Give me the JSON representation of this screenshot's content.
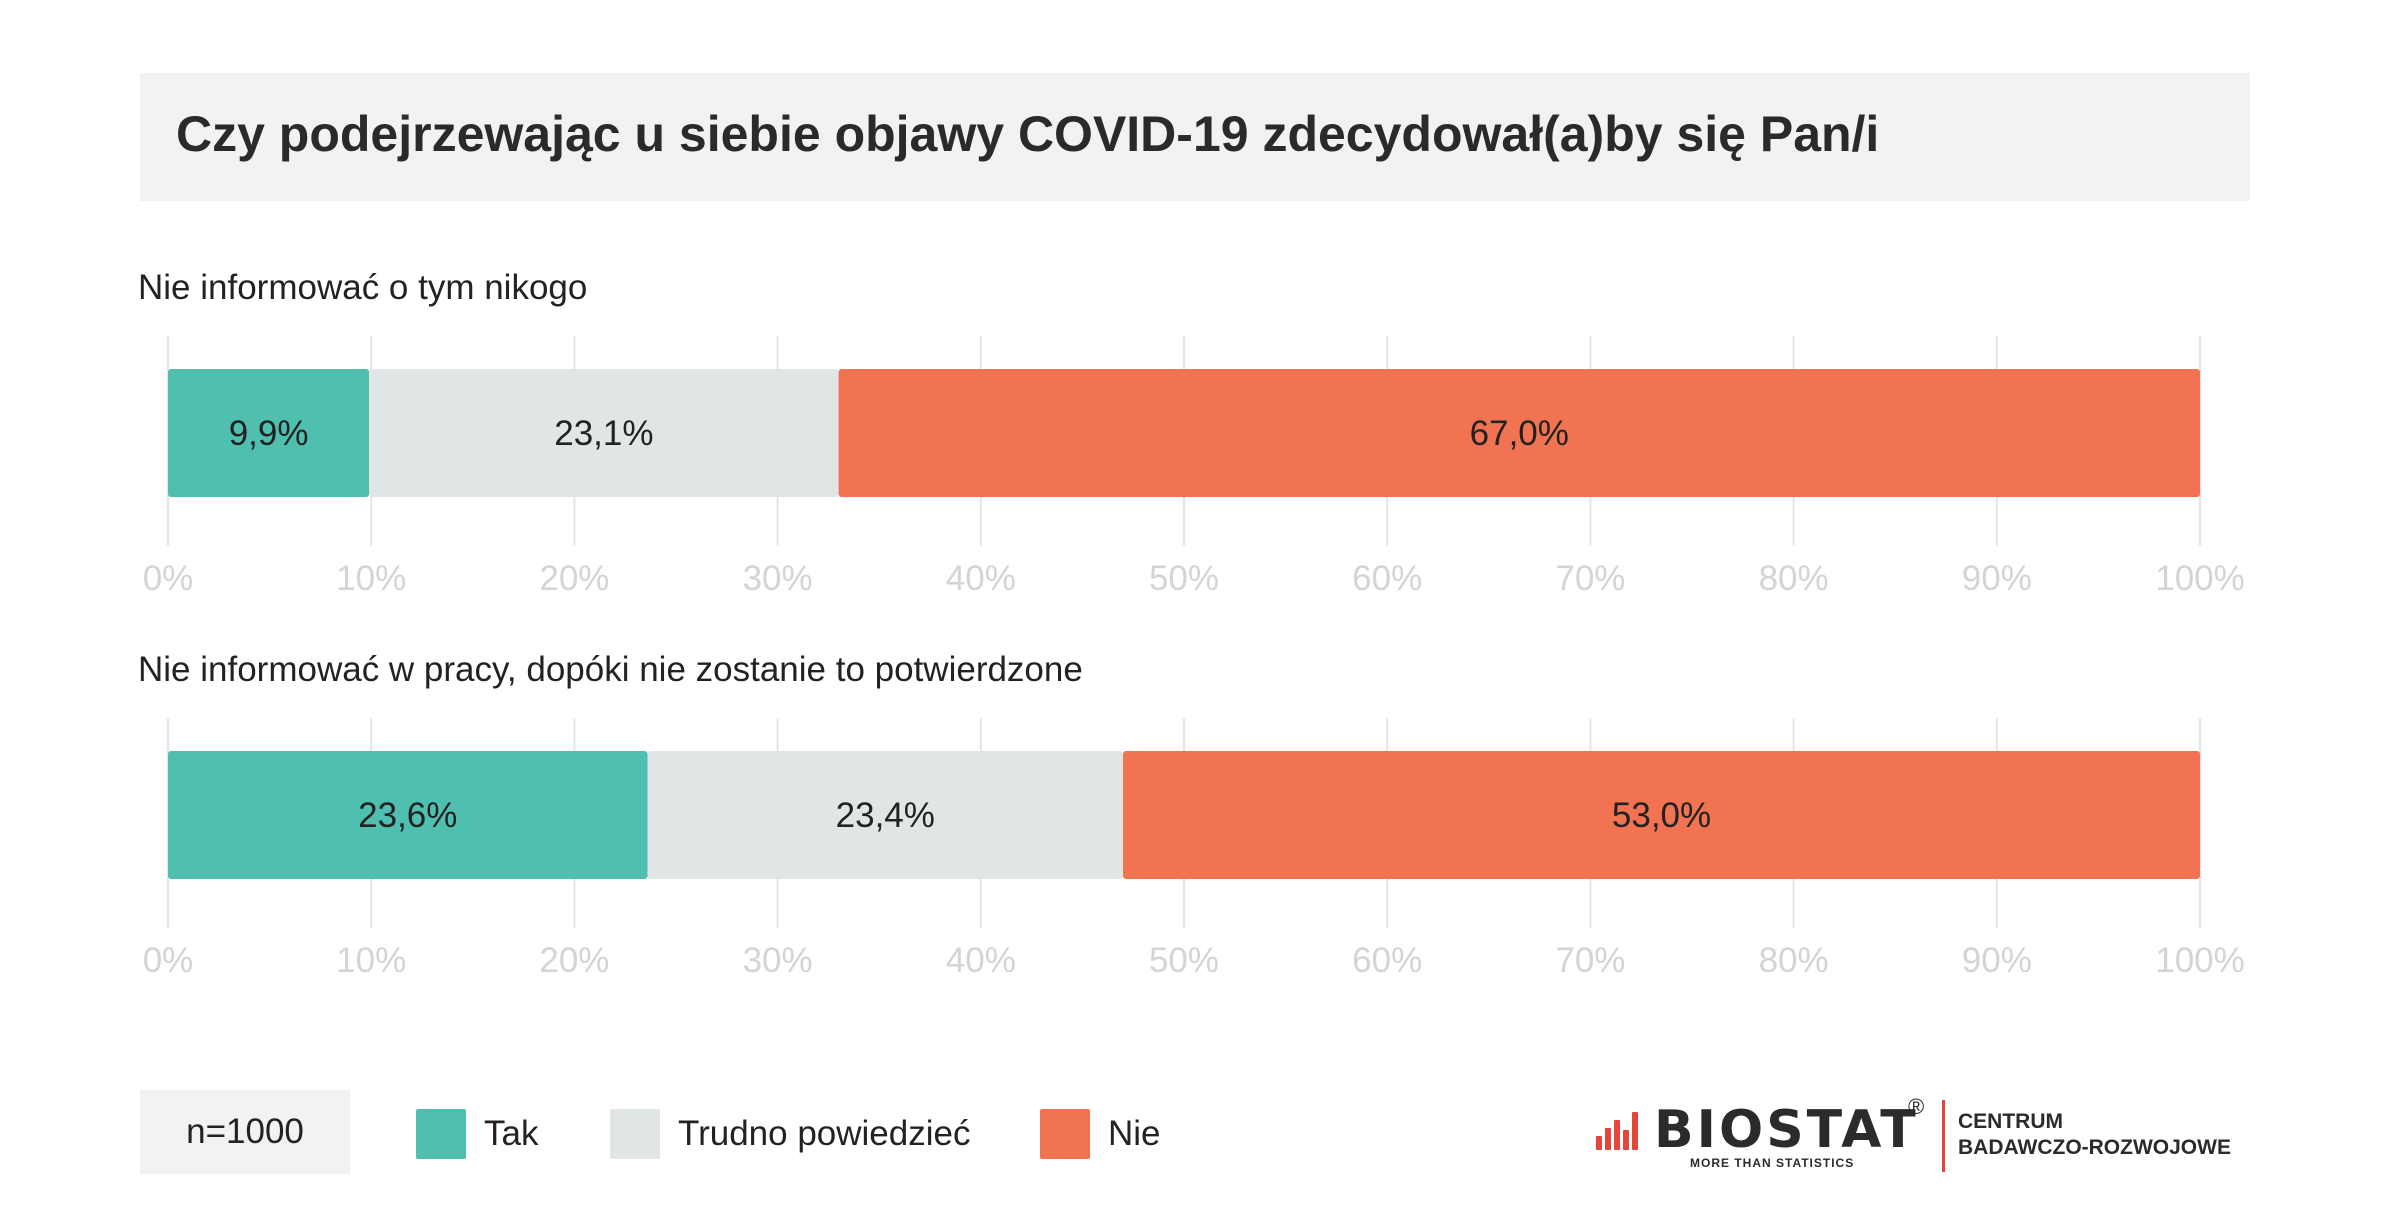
{
  "title": "Czy podejrzewając u siebie objawy COVID-19 zdecydował(a)by się Pan/i",
  "colors": {
    "tak": "#4fc0b0",
    "trudno": "#e0e6e6",
    "nie": "#f17352",
    "grid": "#e4e4e4",
    "tick": "#d4d4d4"
  },
  "chart_data": [
    {
      "type": "bar",
      "orientation": "horizontal-stacked",
      "title": "Nie informować o tym nikogo",
      "xlim": [
        0,
        100
      ],
      "ticks": [
        "0%",
        "10%",
        "20%",
        "30%",
        "40%",
        "50%",
        "60%",
        "70%",
        "80%",
        "90%",
        "100%"
      ],
      "series": [
        {
          "name": "Tak",
          "value": 9.9,
          "label": "9,9%"
        },
        {
          "name": "Trudno powiedzieć",
          "value": 23.1,
          "label": "23,1%"
        },
        {
          "name": "Nie",
          "value": 67.0,
          "label": "67,0%"
        }
      ]
    },
    {
      "type": "bar",
      "orientation": "horizontal-stacked",
      "title": "Nie informować w pracy, dopóki nie zostanie to potwierdzone",
      "xlim": [
        0,
        100
      ],
      "ticks": [
        "0%",
        "10%",
        "20%",
        "30%",
        "40%",
        "50%",
        "60%",
        "70%",
        "80%",
        "90%",
        "100%"
      ],
      "series": [
        {
          "name": "Tak",
          "value": 23.6,
          "label": "23,6%"
        },
        {
          "name": "Trudno powiedzieć",
          "value": 23.4,
          "label": "23,4%"
        },
        {
          "name": "Nie",
          "value": 53.0,
          "label": "53,0%"
        }
      ]
    }
  ],
  "footer": {
    "sample": "n=1000",
    "legend": [
      {
        "label": "Tak",
        "color": "#4fc0b0"
      },
      {
        "label": "Trudno powiedzieć",
        "color": "#e0e6e6"
      },
      {
        "label": "Nie",
        "color": "#f17352"
      }
    ]
  },
  "logo": {
    "brand": "BIOSTAT",
    "registered": "®",
    "tagline": "MORE THAN STATISTICS",
    "unit_line1": "CENTRUM",
    "unit_line2": "BADAWCZO-ROZWOJOWE"
  }
}
